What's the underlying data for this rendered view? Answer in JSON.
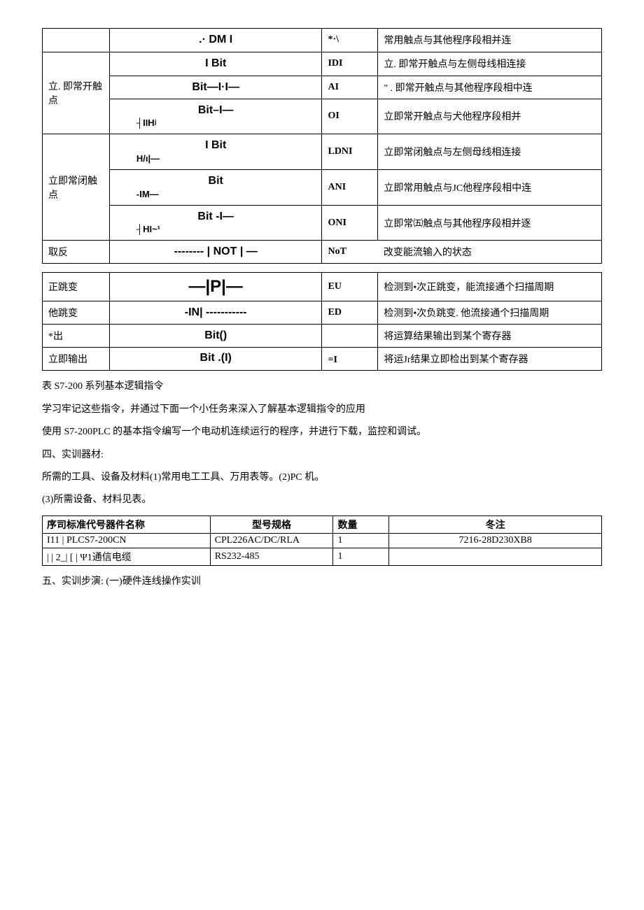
{
  "table1": {
    "rows": [
      {
        "name": "",
        "symbol": ".·    DM      I",
        "sub": "",
        "mnem": "*·\\",
        "desc": "常用触点与其他程序段相并连"
      },
      {
        "name": "",
        "symbol": "I       Bit",
        "sub": "",
        "mnem": "IDI",
        "desc": "立. 即常开触点与左侧母线相连接",
        "rowspanLabel": "立. 即常开触点",
        "rowspan": 3
      },
      {
        "name": "",
        "symbol": "Bit—I·I—",
        "sub": "",
        "mnem": "AI",
        "desc": "\" . 即常开触点与其他程序段相中连"
      },
      {
        "name": "",
        "symbol": "Bit–I—",
        "sub": "┤IIHʲ",
        "mnem": "OI",
        "desc": "立即常开触点与犬他程序段相并"
      },
      {
        "name": "",
        "symbol": "I       Bit",
        "sub": "H/ι|—",
        "mnem": "LDNI",
        "desc": "立即常闭触点与左侧母线相连接",
        "rowspanLabel": "立即常闭触点",
        "rowspan": 3
      },
      {
        "name": "",
        "symbol": "Bit",
        "sub": "-IM—",
        "mnem": "ANI",
        "desc": "立即常用触点与JC他程序段相中连"
      },
      {
        "name": "",
        "symbol": "Bit   -I—",
        "sub": "┤HI~¹",
        "mnem": "ONI",
        "desc": "立即常㈤触点与其他程序段相并逐"
      },
      {
        "name": "取反",
        "symbol": "-------- | NOT | —",
        "sub": "",
        "mnem": "NoT",
        "desc": "改变能流输入的状态"
      }
    ]
  },
  "table2": {
    "rows": [
      {
        "name": "正跳变",
        "symbol": "—|P|—",
        "mnem": "EU",
        "desc": "检测到•次正跳变，能流接通个扫描周期"
      },
      {
        "name": "他跳变",
        "symbol": "-IN| -----------",
        "mnem": "ED",
        "desc": "检测到•次负跳变. 他流接通个扫描周期"
      },
      {
        "name": "*出",
        "symbol": "Bit()",
        "mnem": "",
        "desc": "将运算结果输出到某个寄存器"
      },
      {
        "name": "立即输出",
        "symbol": "Bit .(I)",
        "mnem": "=I",
        "desc": "将运Jr结果立即检出到某个寄存器"
      }
    ]
  },
  "paras": [
    "表 S7-200 系列基本逻辑指令",
    "学习牢记这些指令，并通过下面一个小任务来深入了解基本逻辑指令的应用",
    "使用 S7-200PLC 的基本指令编写一个电动机连续运行的程序，并进行下载，监控和调试。",
    "四、实训器材:",
    "所需的工具、设备及材料(1)常用电工工具、万用表等。(2)PC 机。",
    "(3)所需设备、材料见表。"
  ],
  "table3": {
    "header": [
      "序司标准代号器件名称",
      "型号规格",
      "数量",
      "冬注"
    ],
    "rows": [
      [
        "I11 | PLCS7-200CN",
        "CPL226AC/DC/RLA",
        "1",
        "7216-28D230XB8"
      ],
      [
        "| | 2_| [ | Ψ1通信电缆",
        "RS232-485",
        "1",
        ""
      ]
    ]
  },
  "footer": "五、实训步演:  (一)硬件连线操作实训"
}
